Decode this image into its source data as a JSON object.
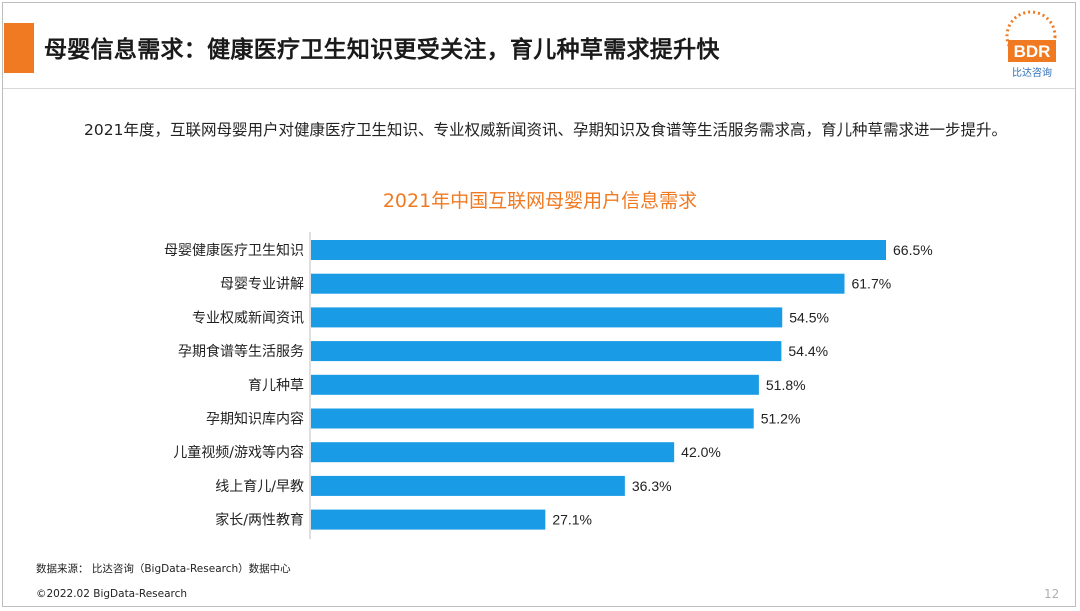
{
  "slide": {
    "title": "母婴信息需求：健康医疗卫生知识更受关注，育儿种草需求提升快",
    "intro": "2021年度，互联网母婴用户对健康医疗卫生知识、专业权威新闻资讯、孕期知识及食谱等生活服务需求高，育儿种草需求进一步提升。",
    "source": "数据来源： 比达咨询（BigData-Research）数据中心",
    "copyright": "©2022.02 BigData-Research",
    "page_number": "12",
    "logo_text": "BDR",
    "logo_subtitle": "比达咨询",
    "accent_color": "#f07a22",
    "bar_color": "#1a9be6"
  },
  "chart_data": {
    "type": "bar",
    "orientation": "horizontal",
    "title": "2021年中国互联网母婴用户信息需求",
    "categories": [
      "母婴健康医疗卫生知识",
      "母婴专业讲解",
      "专业权威新闻资讯",
      "孕期食谱等生活服务",
      "育儿种草",
      "孕期知识库内容",
      "儿童视频/游戏等内容",
      "线上育儿/早教",
      "家长/两性教育"
    ],
    "values": [
      66.5,
      61.7,
      54.5,
      54.4,
      51.8,
      51.2,
      42.0,
      36.3,
      27.1
    ],
    "value_labels": [
      "66.5%",
      "61.7%",
      "54.5%",
      "54.4%",
      "51.8%",
      "51.2%",
      "42.0%",
      "36.3%",
      "27.1%"
    ],
    "xlim": [
      0,
      66.5
    ],
    "grid": false,
    "legend": "none"
  }
}
